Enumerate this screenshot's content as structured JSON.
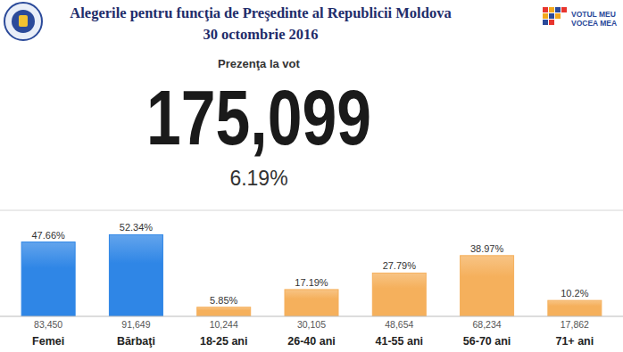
{
  "chart_data": {
    "type": "bar",
    "title": "Alegerile pentru funcţia de Preşedinte al Republicii Moldova",
    "subtitle": "30 octombrie 2016",
    "turnout_title": "Prezenţa la vot",
    "turnout": 175099,
    "turnout_label": "175,099",
    "turnout_percent": 6.19,
    "turnout_percent_label": "6.19%",
    "logo_text": [
      "VOTUL MEU",
      "VOCEA MEA"
    ],
    "categories": [
      "Femei",
      "Bărbaţi",
      "18-25 ani",
      "26-40 ani",
      "41-55 ani",
      "56-70 ani",
      "71+ ani"
    ],
    "values": [
      47.66,
      52.34,
      5.85,
      17.19,
      27.79,
      38.97,
      10.2
    ],
    "value_labels": [
      "47.66%",
      "52.34%",
      "5.85%",
      "17.19%",
      "27.79%",
      "38.97%",
      "10.2%"
    ],
    "counts": [
      83450,
      91649,
      10244,
      30105,
      48654,
      68234,
      17862
    ],
    "count_labels": [
      "83,450",
      "91,649",
      "10,244",
      "30,105",
      "48,654",
      "68,234",
      "17,862"
    ],
    "colors": [
      "#2f86e6",
      "#2f86e6",
      "#f5b05c",
      "#f5b05c",
      "#f5b05c",
      "#f5b05c",
      "#f5b05c"
    ],
    "ylim": [
      0,
      68
    ],
    "yticks": [],
    "tick_labels": "x",
    "data_labels": true,
    "grid": false
  }
}
